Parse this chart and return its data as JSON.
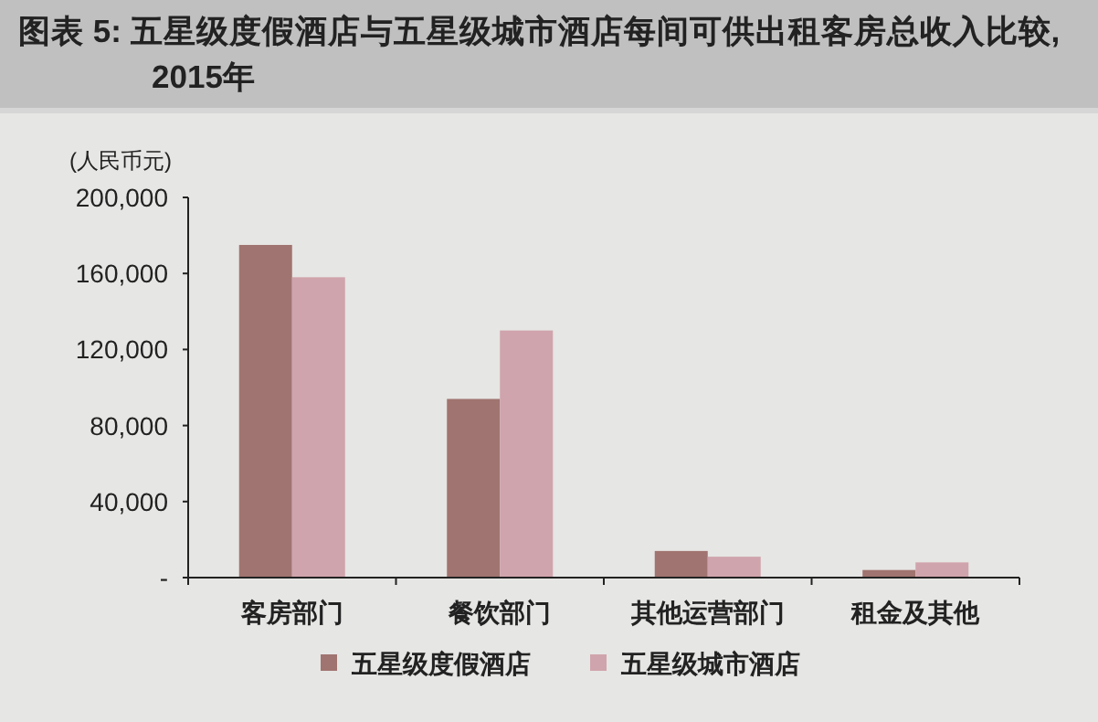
{
  "chart_data": {
    "type": "bar",
    "title": "图表 5: 五星级度假酒店与五星级城市酒店每间可供出租客房总收入比较, 2015年",
    "ylabel": "(人民币元)",
    "categories": [
      "客房部门",
      "餐饮部门",
      "其他运营部门",
      "租金及其他"
    ],
    "series": [
      {
        "name": "五星级度假酒店",
        "color": "#a07470",
        "values": [
          175000,
          94000,
          14000,
          4000
        ]
      },
      {
        "name": "五星级城市酒店",
        "color": "#d0a4ac",
        "values": [
          158000,
          130000,
          11000,
          8000
        ]
      }
    ],
    "ylim": [
      0,
      200000
    ],
    "yticks": [
      {
        "value": 0,
        "label": "-"
      },
      {
        "value": 40000,
        "label": "40,000"
      },
      {
        "value": 80000,
        "label": "80,000"
      },
      {
        "value": 120000,
        "label": "120,000"
      },
      {
        "value": 160000,
        "label": "160,000"
      },
      {
        "value": 200000,
        "label": "200,000"
      }
    ],
    "legend": "bottom",
    "grid": false
  }
}
